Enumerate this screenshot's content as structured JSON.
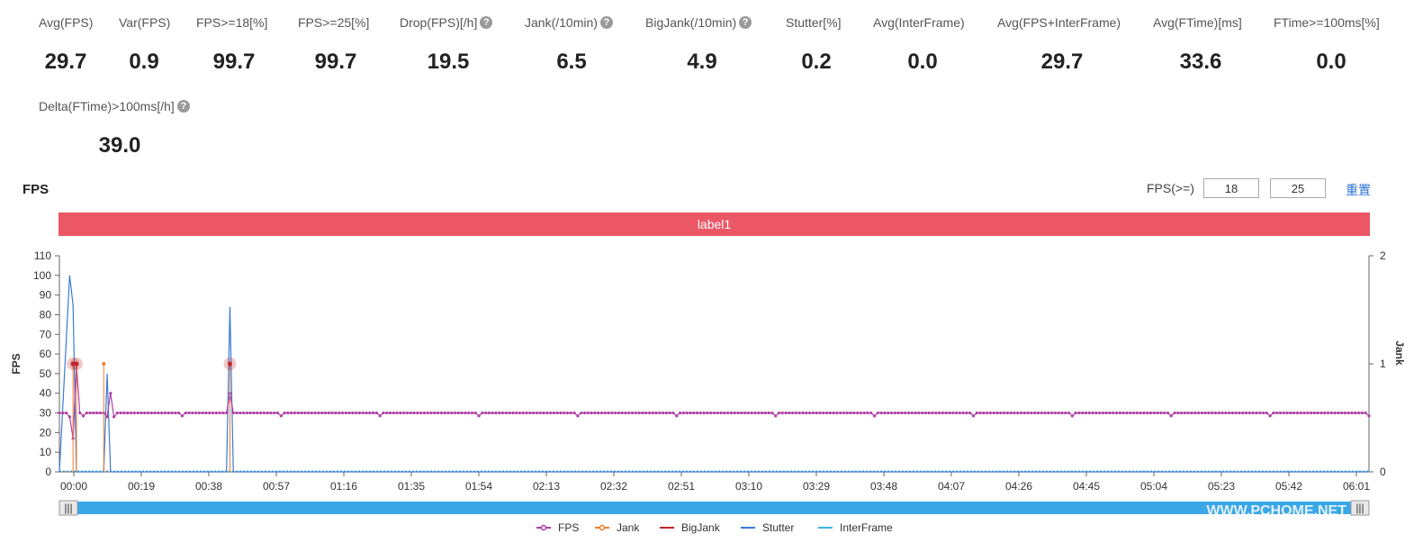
{
  "metrics": [
    {
      "label": "Avg(FPS)",
      "value": "29.7",
      "help": false
    },
    {
      "label": "Var(FPS)",
      "value": "0.9",
      "help": false
    },
    {
      "label": "FPS>=18[%]",
      "value": "99.7",
      "help": false
    },
    {
      "label": "FPS>=25[%]",
      "value": "99.7",
      "help": false
    },
    {
      "label": "Drop(FPS)[/h]",
      "value": "19.5",
      "help": true
    },
    {
      "label": "Jank(/10min)",
      "value": "6.5",
      "help": true
    },
    {
      "label": "BigJank(/10min)",
      "value": "4.9",
      "help": true
    },
    {
      "label": "Stutter[%]",
      "value": "0.2",
      "help": false
    },
    {
      "label": "Avg(InterFrame)",
      "value": "0.0",
      "help": false
    },
    {
      "label": "Avg(FPS+InterFrame)",
      "value": "29.7",
      "help": false
    },
    {
      "label": "Avg(FTime)[ms]",
      "value": "33.6",
      "help": false
    },
    {
      "label": "FTime>=100ms[%]",
      "value": "0.0",
      "help": false
    },
    {
      "label": "Delta(FTime)>100ms[/h]",
      "value": "39.0",
      "help": true
    }
  ],
  "help_glyph": "?",
  "section_title": "FPS",
  "fps_threshold": {
    "label": "FPS(>=)",
    "low": "18",
    "high": "25",
    "reset": "重置"
  },
  "label_band": "label1",
  "chart_data": {
    "type": "line",
    "title": "",
    "ylabel": "FPS",
    "y2label": "Jank",
    "ylim": [
      0,
      110
    ],
    "y2lim": [
      0,
      2
    ],
    "yticks": [
      0,
      10,
      20,
      30,
      40,
      50,
      60,
      70,
      80,
      90,
      100,
      110
    ],
    "y2ticks": [
      0,
      1,
      2
    ],
    "xlim_seconds": [
      0,
      384
    ],
    "xticks": [
      "00:00",
      "00:19",
      "00:38",
      "00:57",
      "01:16",
      "01:35",
      "01:54",
      "02:13",
      "02:32",
      "02:51",
      "03:10",
      "03:29",
      "03:48",
      "04:07",
      "04:26",
      "04:45",
      "05:04",
      "05:23",
      "05:42",
      "06:01"
    ],
    "fps_baseline": 30,
    "fps_dips": [
      {
        "x": 0,
        "y": 30
      },
      {
        "x": 3,
        "y": 28
      },
      {
        "x": 4,
        "y": 17
      },
      {
        "x": 5,
        "y": 55
      },
      {
        "x": 6,
        "y": 30
      },
      {
        "x": 13,
        "y": 30
      },
      {
        "x": 14,
        "y": 28
      },
      {
        "x": 15,
        "y": 40
      },
      {
        "x": 16,
        "y": 28
      },
      {
        "x": 17,
        "y": 30
      },
      {
        "x": 49,
        "y": 30
      },
      {
        "x": 50,
        "y": 40
      },
      {
        "x": 51,
        "y": 30
      }
    ],
    "stutter_spikes": [
      {
        "x": 3,
        "y": 100
      },
      {
        "x": 4,
        "y": 85
      },
      {
        "x": 5,
        "y": 0
      },
      {
        "x": 13,
        "y": 0
      },
      {
        "x": 14,
        "y": 50
      },
      {
        "x": 15,
        "y": 0
      },
      {
        "x": 49,
        "y": 0
      },
      {
        "x": 50,
        "y": 84
      },
      {
        "x": 51,
        "y": 0
      }
    ],
    "jank_events": [
      {
        "x": 4,
        "y": 1
      },
      {
        "x": 5,
        "y": 1
      },
      {
        "x": 13,
        "y": 1
      },
      {
        "x": 50,
        "y": 1
      }
    ],
    "bigjank_events": [
      {
        "x": 4,
        "y": 1
      },
      {
        "x": 5,
        "y": 1
      },
      {
        "x": 50,
        "y": 1
      }
    ],
    "interframe": 0,
    "legend": [
      "FPS",
      "Jank",
      "BigJank",
      "Stutter",
      "InterFrame"
    ],
    "legend_position": "bottom",
    "colors": {
      "FPS": "#b03ea8",
      "Jank": "#f07c2c",
      "BigJank": "#c0262a",
      "Stutter": "#3a7bd5",
      "InterFrame": "#3ab3e8"
    },
    "slider_handle_glyph": "|||"
  },
  "watermark": "WWW.PCHOME.NET"
}
